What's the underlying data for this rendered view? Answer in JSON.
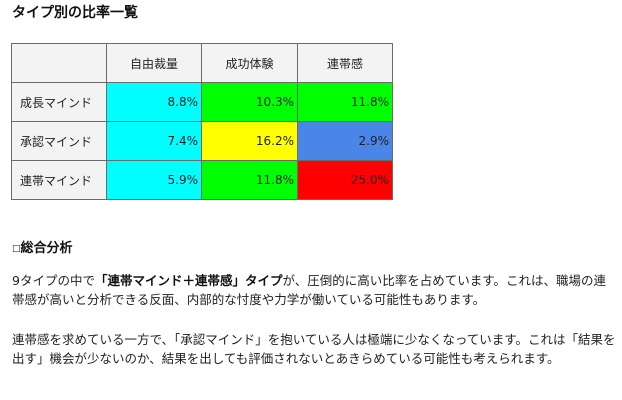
{
  "title": "タイプ別の比率一覧",
  "table": {
    "headers": [
      "",
      "自由裁量",
      "成功体験",
      "連帯感"
    ],
    "rows": [
      {
        "label": "成長マインド",
        "cells": [
          {
            "value": "8.8%",
            "color": "#00ffff"
          },
          {
            "value": "10.3%",
            "color": "#00ff00"
          },
          {
            "value": "11.8%",
            "color": "#00ff00"
          }
        ]
      },
      {
        "label": "承認マインド",
        "cells": [
          {
            "value": "7.4%",
            "color": "#00ffff"
          },
          {
            "value": "16.2%",
            "color": "#ffff00"
          },
          {
            "value": "2.9%",
            "color": "#4a86e8"
          }
        ]
      },
      {
        "label": "連帯マインド",
        "cells": [
          {
            "value": "5.9%",
            "color": "#00ffff"
          },
          {
            "value": "11.8%",
            "color": "#00ff00"
          },
          {
            "value": "25.0%",
            "color": "#ff0000"
          }
        ]
      }
    ]
  },
  "analysis": {
    "bullet": "□",
    "heading": "総合分析",
    "para1": {
      "prefix": "9タイプの中で",
      "bold": "「連帯マインド＋連帯感」タイプ",
      "suffix": "が、圧倒的に高い比率を占めています。これは、職場の連帯感が高いと分析できる反面、内部的な忖度や力学が働いている可能性もあります。"
    },
    "para2": "連帯感を求めている一方で、「承認マインド」を抱いている人は極端に少なくなっています。これは「結果を出す」機会が少ないのか、結果を出しても評価されないとあきらめている可能性も考えられます。"
  }
}
